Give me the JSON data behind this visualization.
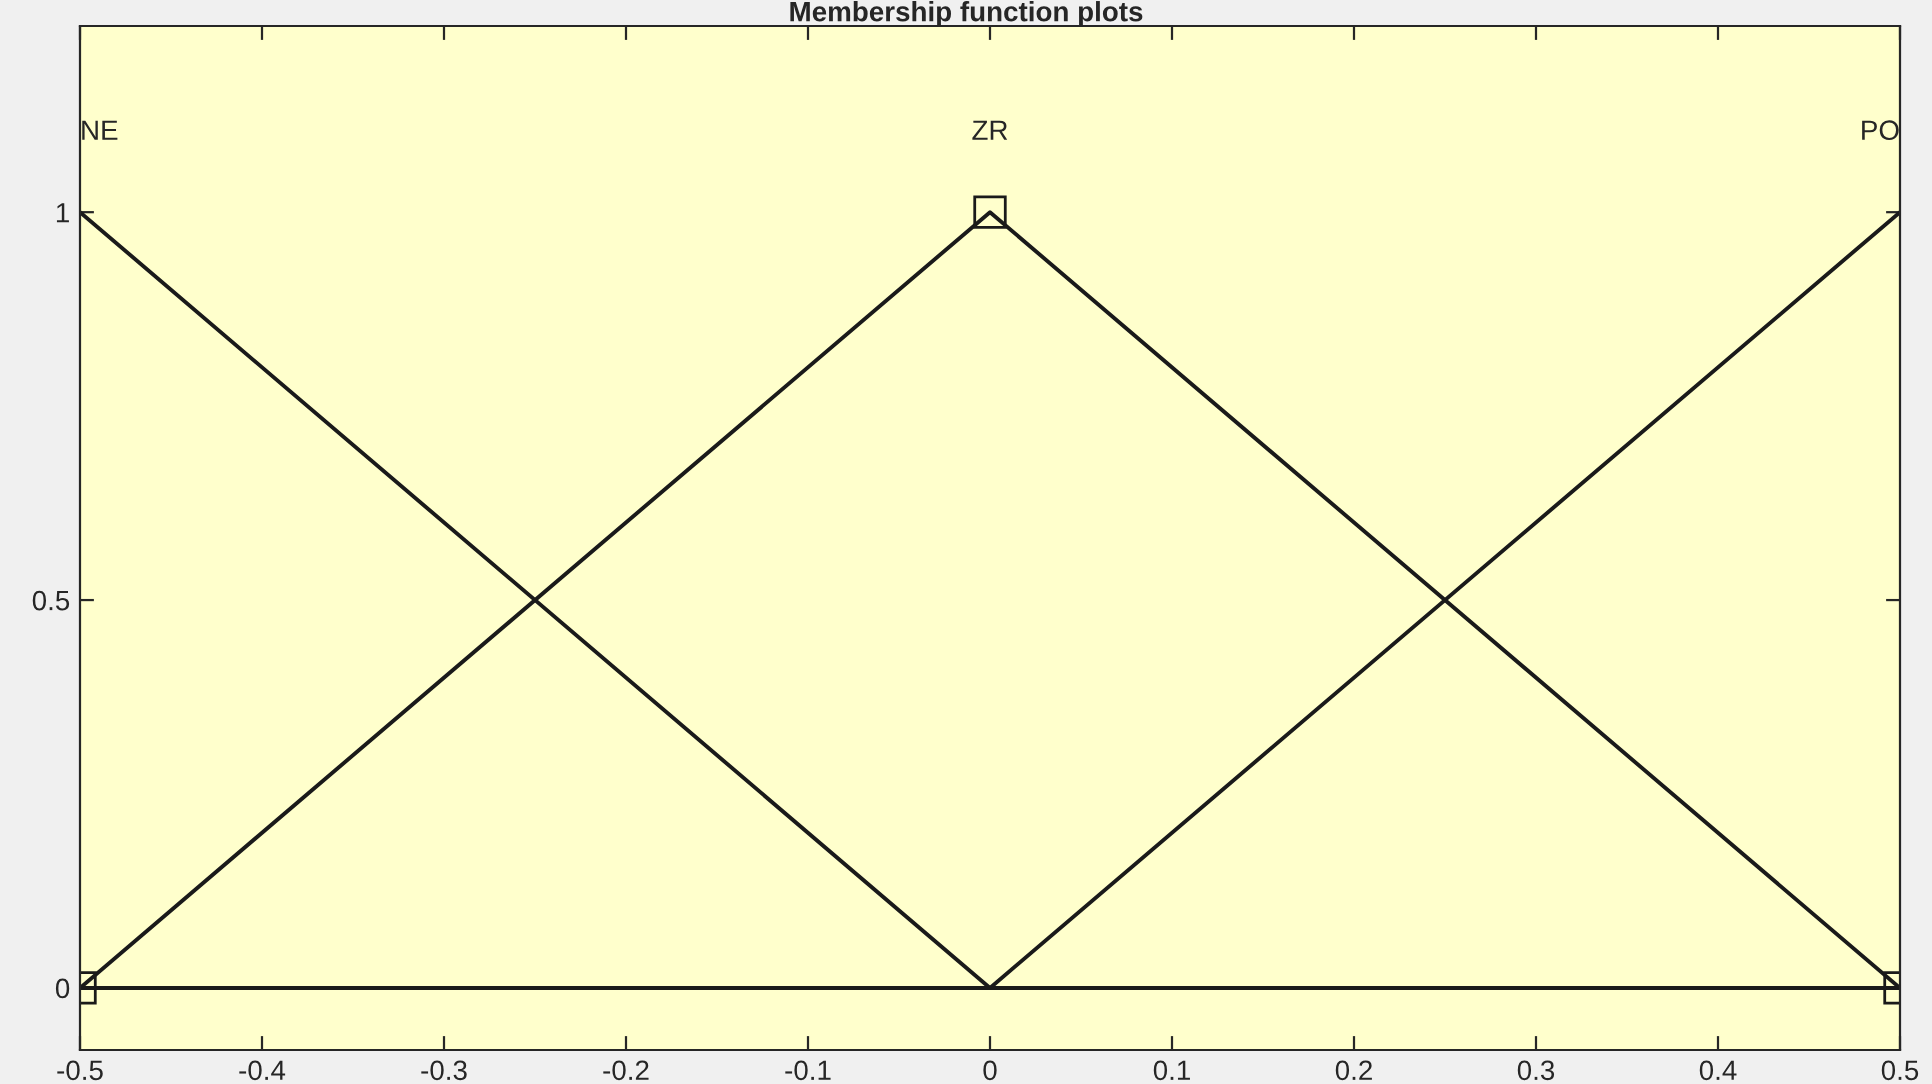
{
  "chart_data": {
    "type": "line",
    "title": "Membership function plots",
    "x": [
      -0.5,
      0,
      0.5
    ],
    "series": [
      {
        "name": "NE",
        "color": "#1a1a1a",
        "values": [
          1,
          0,
          0
        ],
        "marker": "none"
      },
      {
        "name": "ZR",
        "color": "#1a1a1a",
        "values": [
          0,
          1,
          0
        ],
        "marker": "square"
      },
      {
        "name": "PO",
        "color": "#1a1a1a",
        "values": [
          0,
          0,
          1
        ],
        "marker": "none"
      }
    ],
    "xlim": [
      -0.5,
      0.5
    ],
    "ylim": [
      -0.08,
      1.24
    ],
    "xticks": [
      -0.5,
      -0.4,
      -0.3,
      -0.2,
      -0.1,
      0,
      0.1,
      0.2,
      0.3,
      0.4,
      0.5
    ],
    "yticks": [
      0,
      0.5,
      1
    ],
    "grid": false,
    "legend": false,
    "line_style": "solid"
  }
}
